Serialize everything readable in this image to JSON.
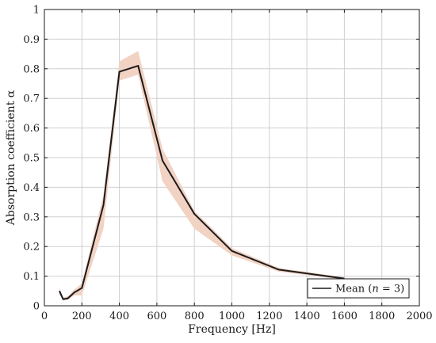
{
  "chart_data": {
    "type": "line",
    "xlabel": "Frequency [Hz]",
    "ylabel": "Absorption coefficient α",
    "xlim": [
      0,
      2000
    ],
    "ylim": [
      0,
      1
    ],
    "xticks": [
      0,
      200,
      400,
      600,
      800,
      1000,
      1200,
      1400,
      1600,
      1800,
      2000
    ],
    "yticks": [
      0,
      0.1,
      0.2,
      0.3,
      0.4,
      0.5,
      0.6,
      0.7,
      0.8,
      0.9,
      1
    ],
    "xtick_labels": [
      "0",
      "200",
      "400",
      "600",
      "800",
      "1000",
      "1200",
      "1400",
      "1600",
      "1800",
      "2000"
    ],
    "ytick_labels": [
      "0",
      "0.1",
      "0.2",
      "0.3",
      "0.4",
      "0.5",
      "0.6",
      "0.7",
      "0.8",
      "0.9",
      "1"
    ],
    "grid": true,
    "legend_position": "bottom-right",
    "legend": {
      "prefix": "Mean (",
      "var": "n",
      "suffix": " = 3)"
    },
    "series": [
      {
        "name": "Mean (n = 3)",
        "color": "#1a1a1a",
        "x": [
          80,
          100,
          125,
          160,
          200,
          315,
          400,
          500,
          630,
          800,
          1000,
          1250,
          1600
        ],
        "y": [
          0.05,
          0.022,
          0.025,
          0.045,
          0.06,
          0.34,
          0.79,
          0.81,
          0.49,
          0.31,
          0.185,
          0.122,
          0.092
        ]
      }
    ],
    "band": {
      "color": "#f2d2c3",
      "x": [
        80,
        100,
        125,
        160,
        200,
        315,
        400,
        500,
        630,
        800,
        1000,
        1250,
        1600
      ],
      "lower": [
        0.04,
        0.018,
        0.02,
        0.035,
        0.035,
        0.26,
        0.76,
        0.78,
        0.42,
        0.26,
        0.17,
        0.115,
        0.088
      ],
      "upper": [
        0.06,
        0.028,
        0.032,
        0.055,
        0.075,
        0.375,
        0.825,
        0.86,
        0.53,
        0.32,
        0.195,
        0.128,
        0.096
      ]
    }
  }
}
